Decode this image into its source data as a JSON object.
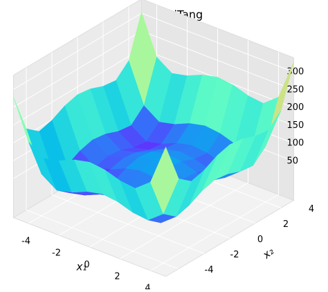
{
  "chart_data": {
    "type": "surface3d",
    "title": "StyblinskiTang",
    "xlabel": "x₁",
    "ylabel": "x₂",
    "x": [
      -5,
      -4,
      -3,
      -2,
      -1,
      0,
      1,
      2,
      3,
      4,
      5
    ],
    "y": [
      -5,
      -4,
      -3,
      -2,
      -1,
      0,
      1,
      2,
      3,
      4,
      5
    ],
    "z": [
      [
        278,
        168,
        139,
        149,
        168,
        178,
        173,
        159,
        154,
        188,
        303
      ],
      [
        168,
        58,
        29,
        39,
        58,
        68,
        63,
        49,
        44,
        78,
        193
      ],
      [
        139,
        29,
        0,
        10,
        29,
        39,
        34,
        20,
        15,
        49,
        164
      ],
      [
        149,
        39,
        10,
        20,
        39,
        49,
        44,
        30,
        25,
        59,
        174
      ],
      [
        168,
        58,
        29,
        39,
        58,
        68,
        63,
        49,
        44,
        78,
        193
      ],
      [
        178,
        68,
        39,
        49,
        68,
        78,
        73,
        59,
        54,
        88,
        203
      ],
      [
        173,
        63,
        34,
        44,
        63,
        73,
        68,
        54,
        49,
        83,
        198
      ],
      [
        159,
        49,
        20,
        30,
        49,
        59,
        54,
        40,
        35,
        69,
        184
      ],
      [
        154,
        44,
        15,
        25,
        44,
        54,
        49,
        35,
        30,
        64,
        179
      ],
      [
        188,
        78,
        49,
        59,
        78,
        88,
        83,
        69,
        64,
        98,
        213
      ],
      [
        303,
        193,
        164,
        174,
        193,
        203,
        198,
        184,
        179,
        213,
        328
      ]
    ],
    "colormap": "rainbow",
    "xlim": [
      -5,
      5
    ],
    "ylim": [
      -5,
      5
    ],
    "zlim": [
      -60,
      340
    ],
    "xticks": [
      -4,
      -2,
      0,
      2,
      4
    ],
    "yticks": [
      -4,
      -2,
      0,
      2,
      4
    ],
    "zticks": [
      50,
      100,
      150,
      200,
      250,
      300
    ],
    "grid": true
  }
}
